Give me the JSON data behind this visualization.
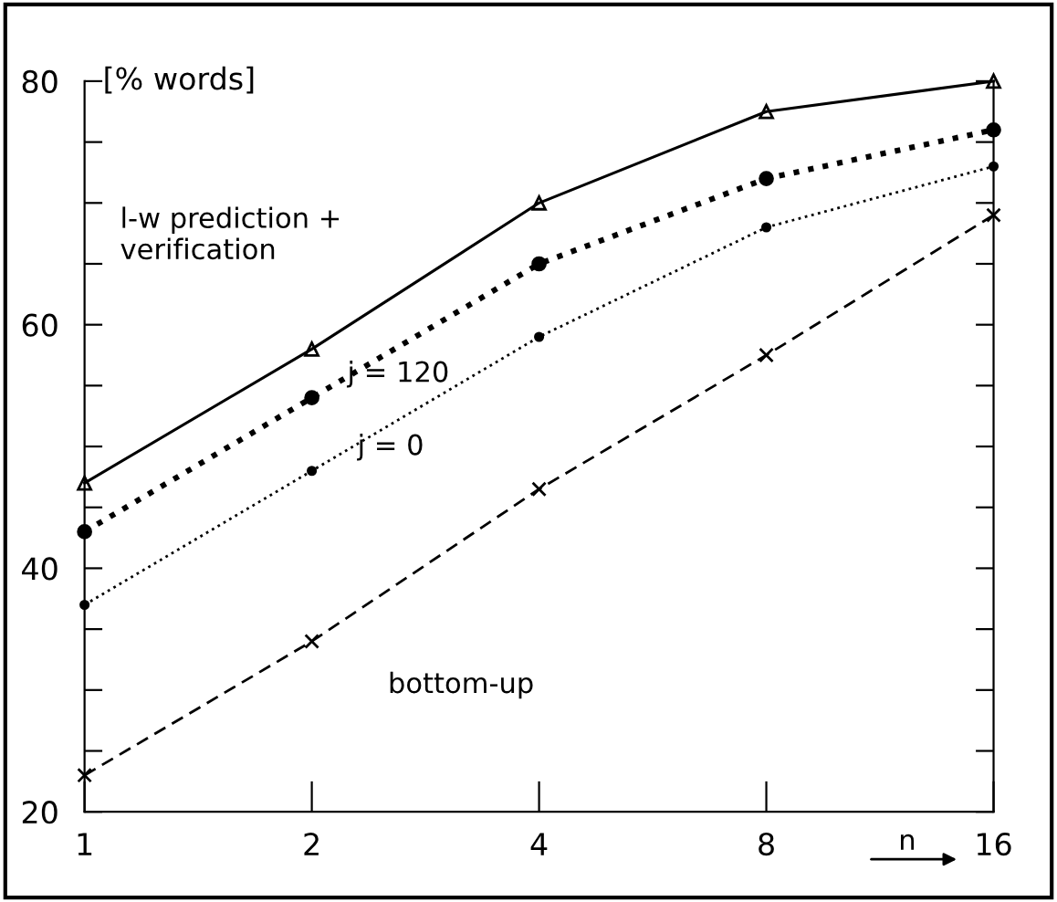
{
  "chart_data": {
    "type": "line",
    "ylabel": "[% words]",
    "xlabel": "n",
    "log": "x",
    "x": [
      1,
      2,
      4,
      8,
      16
    ],
    "xlim": [
      1,
      16
    ],
    "xticks": [
      1,
      2,
      4,
      8,
      16
    ],
    "ylim": [
      20,
      80
    ],
    "yticks": [
      20,
      {
        "value": 25,
        "label": null
      },
      {
        "value": 30,
        "label": null
      },
      {
        "value": 35,
        "label": null
      },
      40,
      {
        "value": 45,
        "label": null
      },
      {
        "value": 50,
        "label": null
      },
      {
        "value": 55,
        "label": null
      },
      60,
      {
        "value": 65,
        "label": null
      },
      {
        "value": 70,
        "label": null
      },
      {
        "value": 75,
        "label": null
      },
      80
    ],
    "grid": false,
    "series": [
      {
        "name": "l-w prediction +\nverification",
        "color": "#000000",
        "marker": "triangle",
        "line_style": "solid",
        "values": [
          47,
          58,
          70,
          77.5,
          80
        ]
      },
      {
        "name": "j = 120",
        "color": "#000000",
        "marker": "circle",
        "line_style": "dotted",
        "values": [
          43,
          54,
          65,
          72,
          76
        ]
      },
      {
        "name": "j = 0",
        "color": "#000000",
        "marker": "circle",
        "line_style": "dotted",
        "values": [
          37,
          48,
          59,
          68,
          73
        ]
      },
      {
        "name": "bottom-up",
        "color": "#000000",
        "marker": "cross",
        "line_style": "dashed",
        "values": [
          23,
          34,
          46.5,
          57.5,
          69
        ]
      }
    ]
  }
}
